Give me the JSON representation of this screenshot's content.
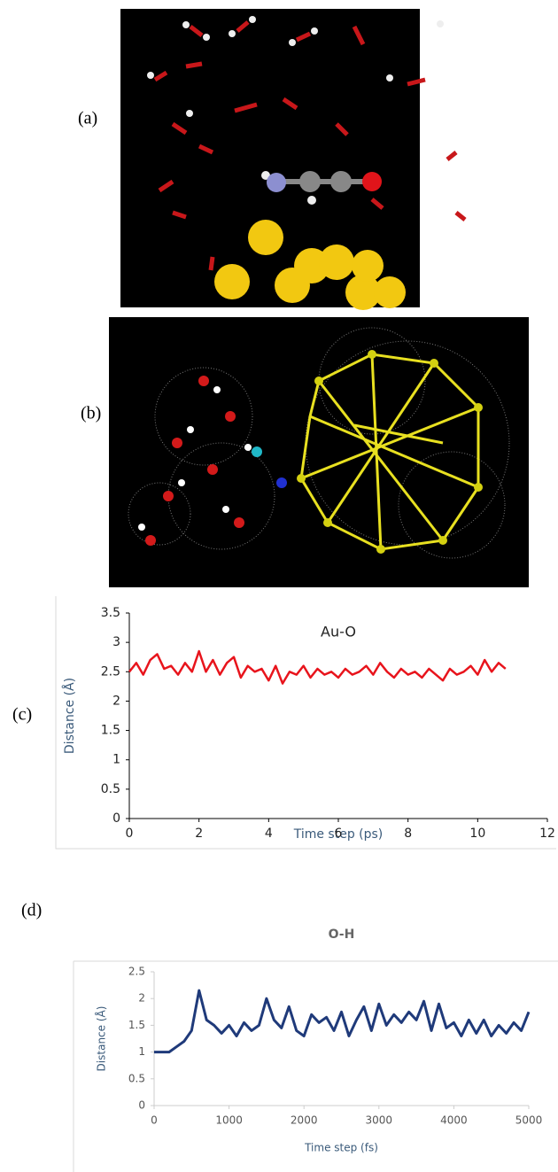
{
  "panel_labels": [
    "(a)",
    "(b)",
    "(c)",
    "(d)"
  ],
  "chart_data": [
    {
      "type": "line",
      "title": "Au-O",
      "x_label": "Time step (ps)",
      "y_label": "Distance (Å)",
      "xlim": [
        0,
        12
      ],
      "xticks": [
        0,
        2,
        4,
        6,
        8,
        10,
        12
      ],
      "ylim": [
        0,
        3.5
      ],
      "yticks": [
        0,
        0.5,
        1,
        1.5,
        2,
        2.5,
        3,
        3.5
      ],
      "grid": false,
      "x": [
        0,
        0.2,
        0.4,
        0.6,
        0.8,
        1,
        1.2,
        1.4,
        1.6,
        1.8,
        2,
        2.2,
        2.4,
        2.6,
        2.8,
        3,
        3.2,
        3.4,
        3.6,
        3.8,
        4,
        4.2,
        4.4,
        4.6,
        4.8,
        5,
        5.2,
        5.4,
        5.6,
        5.8,
        6,
        6.2,
        6.4,
        6.6,
        6.8,
        7,
        7.2,
        7.4,
        7.6,
        7.8,
        8,
        8.2,
        8.4,
        8.6,
        8.8,
        9,
        9.2,
        9.4,
        9.6,
        9.8,
        10,
        10.2,
        10.4,
        10.6,
        10.8
      ],
      "series": [
        {
          "color": "#e8141c",
          "values": [
            2.5,
            2.65,
            2.45,
            2.7,
            2.8,
            2.55,
            2.6,
            2.45,
            2.65,
            2.5,
            2.85,
            2.5,
            2.7,
            2.45,
            2.65,
            2.75,
            2.4,
            2.6,
            2.5,
            2.55,
            2.35,
            2.6,
            2.3,
            2.5,
            2.45,
            2.6,
            2.4,
            2.55,
            2.45,
            2.5,
            2.4,
            2.55,
            2.45,
            2.5,
            2.6,
            2.45,
            2.65,
            2.5,
            2.4,
            2.55,
            2.45,
            2.5,
            2.4,
            2.55,
            2.45,
            2.35,
            2.55,
            2.45,
            2.5,
            2.6,
            2.45,
            2.7,
            2.5,
            2.65,
            2.55
          ]
        }
      ]
    },
    {
      "type": "line",
      "title": "O-H",
      "x_label": "Time step (fs)",
      "y_label": "Distance (Å)",
      "xlim": [
        0,
        5000
      ],
      "xticks": [
        0,
        1000,
        2000,
        3000,
        4000,
        5000
      ],
      "ylim": [
        0,
        2.5
      ],
      "yticks": [
        0,
        0.5,
        1,
        1.5,
        2,
        2.5
      ],
      "grid": false,
      "x": [
        0,
        100,
        200,
        300,
        400,
        500,
        600,
        700,
        800,
        900,
        1000,
        1100,
        1200,
        1300,
        1400,
        1500,
        1600,
        1700,
        1800,
        1900,
        2000,
        2100,
        2200,
        2300,
        2400,
        2500,
        2600,
        2700,
        2800,
        2900,
        3000,
        3100,
        3200,
        3300,
        3400,
        3500,
        3600,
        3700,
        3800,
        3900,
        4000,
        4100,
        4200,
        4300,
        4400,
        4500,
        4600,
        4700,
        4800,
        4900,
        5000
      ],
      "series": [
        {
          "color": "#1f3a7a",
          "values": [
            1,
            1,
            1,
            1.1,
            1.2,
            1.4,
            2.15,
            1.6,
            1.5,
            1.35,
            1.5,
            1.3,
            1.55,
            1.4,
            1.5,
            2,
            1.6,
            1.45,
            1.85,
            1.4,
            1.3,
            1.7,
            1.55,
            1.65,
            1.4,
            1.75,
            1.3,
            1.6,
            1.85,
            1.4,
            1.9,
            1.5,
            1.7,
            1.55,
            1.75,
            1.6,
            1.95,
            1.4,
            1.9,
            1.45,
            1.55,
            1.3,
            1.6,
            1.35,
            1.6,
            1.3,
            1.5,
            1.35,
            1.55,
            1.4,
            1.75
          ]
        }
      ]
    }
  ]
}
